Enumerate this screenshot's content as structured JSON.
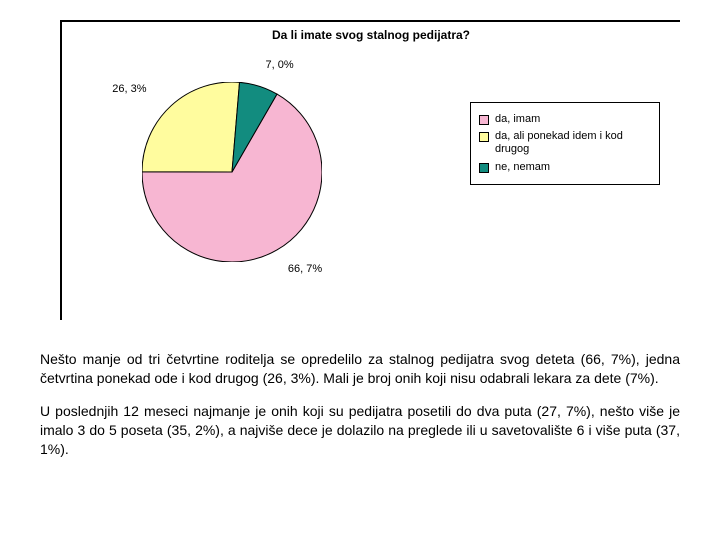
{
  "chart": {
    "type": "pie",
    "title": "Da li imate svog stalnog pedijatra?",
    "title_fontsize": 12,
    "title_fontweight": "bold",
    "background_color": "#ffffff",
    "border_color": "#000000",
    "slices": [
      {
        "label": "da, imam",
        "value": 66.7,
        "display": "66, 7%",
        "color": "#f7b6d2"
      },
      {
        "label": "da, ali ponekad idem i kod drugog",
        "value": 26.3,
        "display": "26, 3%",
        "color": "#fffc9e"
      },
      {
        "label": "ne, nemam",
        "value": 7.0,
        "display": "7, 0%",
        "color": "#128c7f"
      }
    ],
    "radius": 90,
    "stroke_color": "#000000",
    "stroke_width": 1,
    "start_angle": -60,
    "label_fontsize": 11,
    "legend": {
      "position": "right",
      "border_color": "#000000",
      "background_color": "#ffffff",
      "fontsize": 11
    }
  },
  "paragraphs": {
    "p1": "Nešto manje od tri četvrtine roditelja se opredelilo za stalnog pedijatra svog deteta (66, 7%), jedna četvrtina ponekad ode i kod drugog (26, 3%). Mali je broj onih koji nisu odabrali lekara za dete (7%).",
    "p2": "U poslednjih 12 meseci najmanje je onih koji su pedijatra posetili do dva puta (27, 7%), nešto više je imalo 3 do 5 poseta (35, 2%), a najviše dece je dolazilo na preglede ili u savetovalište 6 i više puta (37, 1%)."
  },
  "text_style": {
    "font_family": "Arial, sans-serif",
    "body_fontsize": 14,
    "body_color": "#000000"
  }
}
